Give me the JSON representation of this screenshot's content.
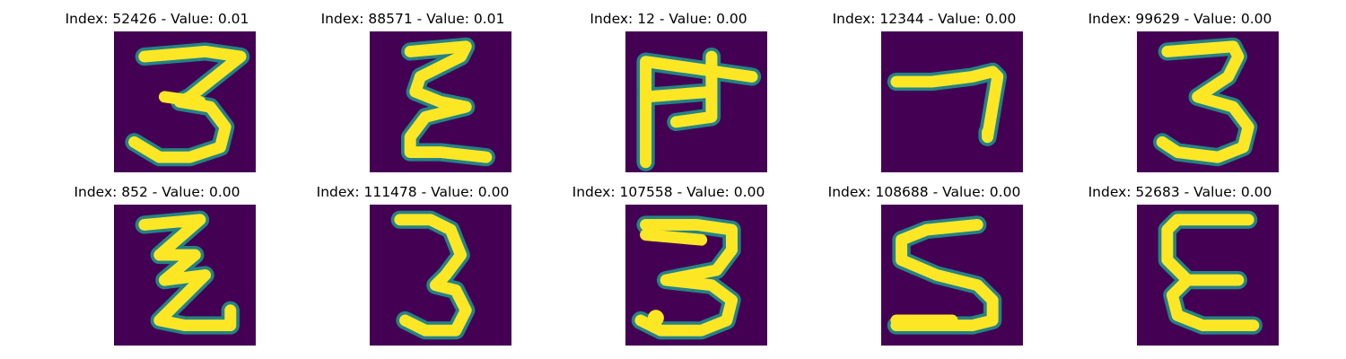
{
  "colors": {
    "background": "#440154",
    "mid": "#21918c",
    "foreground": "#fde725"
  },
  "panels": [
    {
      "title": "Index: 52426 - Value: 0.01",
      "glyph": "3"
    },
    {
      "title": "Index: 88571 - Value: 0.01",
      "glyph": "epsilon-like"
    },
    {
      "title": "Index: 12 - Value: 0.00",
      "glyph": "comb-like"
    },
    {
      "title": "Index: 12344 - Value: 0.00",
      "glyph": "7-like"
    },
    {
      "title": "Index: 99629 - Value: 0.00",
      "glyph": "3"
    },
    {
      "title": "Index: 852 - Value: 0.00",
      "glyph": "z-like"
    },
    {
      "title": "Index: 111478 - Value: 0.00",
      "glyph": "3"
    },
    {
      "title": "Index: 107558 - Value: 0.00",
      "glyph": "3"
    },
    {
      "title": "Index: 108688 - Value: 0.00",
      "glyph": "5-like"
    },
    {
      "title": "Index: 52683 - Value: 0.00",
      "glyph": "epsilon-like"
    }
  ]
}
